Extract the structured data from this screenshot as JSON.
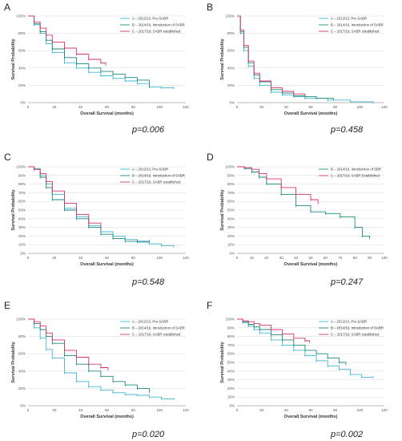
{
  "figure": {
    "panels": [
      {
        "letter": "A",
        "pvalue": "p=0.006"
      },
      {
        "letter": "B",
        "pvalue": "p=0.458"
      },
      {
        "letter": "C",
        "pvalue": "p=0.548"
      },
      {
        "letter": "D",
        "pvalue": "p=0.247"
      },
      {
        "letter": "E",
        "pvalue": "p=0.020"
      },
      {
        "letter": "F",
        "pvalue": "p=0.002"
      }
    ]
  },
  "chart_data": [
    {
      "panel": "A",
      "type": "line",
      "title": "",
      "xlabel": "Overall Survival (months)",
      "ylabel": "Survival Probability",
      "xlim": [
        0,
        130
      ],
      "ylim": [
        0,
        100
      ],
      "xticks": [
        "0",
        "20",
        "40",
        "60",
        "80",
        "100",
        "120"
      ],
      "yticks": [
        "0%",
        "20%",
        "40%",
        "60%",
        "80%",
        "100%"
      ],
      "legend_position": "top-right",
      "grid": true,
      "series": [
        {
          "name": "A – 2012/13, Pre-SABR",
          "color": "#45b8d4",
          "x": [
            0,
            5,
            10,
            15,
            20,
            30,
            40,
            50,
            60,
            70,
            80,
            90,
            100,
            110,
            120
          ],
          "y": [
            100,
            90,
            80,
            68,
            58,
            46,
            40,
            35,
            31,
            28,
            25,
            22,
            18,
            17,
            17
          ]
        },
        {
          "name": "B – 2014/16, Introduction of SABR",
          "color": "#1e8a7e",
          "x": [
            0,
            5,
            10,
            15,
            20,
            30,
            40,
            50,
            60,
            70,
            80,
            90,
            100
          ],
          "y": [
            100,
            91,
            82,
            72,
            62,
            52,
            45,
            40,
            36,
            33,
            29,
            26,
            19
          ]
        },
        {
          "name": "C – 2017/19, SABR established",
          "color": "#d6336c",
          "x": [
            0,
            5,
            10,
            15,
            20,
            30,
            40,
            50,
            60,
            64
          ],
          "y": [
            100,
            93,
            86,
            78,
            70,
            63,
            56,
            50,
            46,
            44
          ]
        }
      ]
    },
    {
      "panel": "B",
      "type": "line",
      "title": "",
      "xlabel": "Overall Survival (months)",
      "ylabel": "Survival Probability",
      "xlim": [
        0,
        130
      ],
      "ylim": [
        0,
        100
      ],
      "xticks": [
        "0",
        "20",
        "40",
        "60",
        "80",
        "100",
        "120"
      ],
      "yticks": [
        "0%",
        "20%",
        "40%",
        "60%",
        "80%",
        "100%"
      ],
      "legend_position": "top-right",
      "grid": true,
      "series": [
        {
          "name": "A – 2012/13, Pre-SABR",
          "color": "#45b8d4",
          "x": [
            0,
            3,
            6,
            10,
            15,
            20,
            30,
            40,
            50,
            60,
            80,
            100,
            120
          ],
          "y": [
            100,
            80,
            60,
            42,
            28,
            20,
            12,
            9,
            7,
            5,
            3,
            1,
            0
          ]
        },
        {
          "name": "B – 2014/16, Introduction of SABR",
          "color": "#1e8a7e",
          "x": [
            0,
            3,
            6,
            10,
            15,
            20,
            30,
            40,
            50,
            60,
            70,
            85
          ],
          "y": [
            100,
            82,
            64,
            46,
            32,
            24,
            15,
            11,
            8,
            7,
            5,
            4
          ]
        },
        {
          "name": "C – 2017/19, SABR established",
          "color": "#d6336c",
          "x": [
            0,
            3,
            6,
            10,
            15,
            20,
            30,
            40,
            50,
            60
          ],
          "y": [
            100,
            84,
            66,
            48,
            34,
            25,
            17,
            13,
            10,
            8
          ]
        }
      ]
    },
    {
      "panel": "C",
      "type": "line",
      "title": "",
      "xlabel": "Overall Survival (months)",
      "ylabel": "Survival Probability",
      "xlim": [
        0,
        130
      ],
      "ylim": [
        0,
        100
      ],
      "xticks": [
        "0",
        "20",
        "40",
        "60",
        "80",
        "100",
        "120"
      ],
      "yticks": [
        "0%",
        "10%",
        "20%",
        "30%",
        "40%",
        "50%",
        "60%",
        "70%",
        "80%",
        "90%",
        "100%"
      ],
      "legend_position": "top-right",
      "grid": true,
      "series": [
        {
          "name": "A – 2012/13, Pre-SABR",
          "color": "#45b8d4",
          "x": [
            0,
            5,
            10,
            15,
            20,
            30,
            40,
            50,
            60,
            70,
            80,
            90,
            100,
            110,
            120
          ],
          "y": [
            100,
            98,
            90,
            80,
            68,
            52,
            42,
            32,
            25,
            20,
            16,
            13,
            11,
            9,
            8
          ]
        },
        {
          "name": "B – 2014/16, Introduction of SABR",
          "color": "#1e8a7e",
          "x": [
            0,
            5,
            10,
            15,
            20,
            30,
            40,
            50,
            60,
            70,
            80,
            90,
            100
          ],
          "y": [
            100,
            97,
            88,
            76,
            62,
            50,
            40,
            30,
            22,
            17,
            14,
            14,
            14
          ]
        },
        {
          "name": "C – 2017/19, SABR established",
          "color": "#d6336c",
          "x": [
            0,
            5,
            10,
            15,
            20,
            30,
            40,
            50,
            60
          ],
          "y": [
            100,
            97,
            92,
            83,
            72,
            58,
            45,
            35,
            28
          ]
        }
      ]
    },
    {
      "panel": "D",
      "type": "line",
      "title": "",
      "xlabel": "Overall Survival (months)",
      "ylabel": "Survival Probability",
      "xlim": [
        0,
        100
      ],
      "ylim": [
        0,
        100
      ],
      "xticks": [
        "0",
        "10",
        "20",
        "30",
        "40",
        "50",
        "60",
        "70",
        "80",
        "90",
        "100"
      ],
      "yticks": [
        "0%",
        "10%",
        "20%",
        "30%",
        "40%",
        "50%",
        "60%",
        "70%",
        "80%",
        "90%",
        "100%"
      ],
      "legend_position": "top-right",
      "grid": true,
      "series": [
        {
          "name": "B – 2014/16, Introduction of SBR",
          "color": "#1e8a7e",
          "x": [
            0,
            5,
            10,
            15,
            20,
            30,
            40,
            50,
            60,
            70,
            80,
            85,
            90
          ],
          "y": [
            100,
            98,
            94,
            88,
            80,
            68,
            55,
            48,
            46,
            42,
            30,
            20,
            18
          ]
        },
        {
          "name": "C – 2017/19, SABR Established",
          "color": "#d6336c",
          "x": [
            0,
            5,
            10,
            15,
            20,
            30,
            40,
            50,
            55
          ],
          "y": [
            100,
            99,
            97,
            92,
            86,
            76,
            68,
            62,
            58
          ]
        }
      ]
    },
    {
      "panel": "E",
      "type": "line",
      "title": "",
      "xlabel": "Overall Survival (months)",
      "ylabel": "Survival Probability",
      "xlim": [
        0,
        130
      ],
      "ylim": [
        0,
        100
      ],
      "xticks": [
        "0",
        "20",
        "40",
        "60",
        "80",
        "100",
        "120"
      ],
      "yticks": [
        "0%",
        "20%",
        "40%",
        "60%",
        "80%",
        "100%"
      ],
      "legend_position": "top-right",
      "grid": true,
      "series": [
        {
          "name": "A – 2012/13, Pre-SABR",
          "color": "#45b8d4",
          "x": [
            0,
            5,
            10,
            15,
            20,
            30,
            40,
            50,
            60,
            70,
            80,
            90,
            100,
            110,
            120
          ],
          "y": [
            100,
            90,
            78,
            65,
            55,
            38,
            28,
            22,
            18,
            15,
            13,
            12,
            10,
            8,
            8
          ]
        },
        {
          "name": "B – 2014/16, Introduction of SABR",
          "color": "#1e8a7e",
          "x": [
            0,
            5,
            10,
            15,
            20,
            30,
            40,
            50,
            60,
            70,
            80,
            90,
            100
          ],
          "y": [
            100,
            95,
            88,
            80,
            72,
            58,
            48,
            40,
            34,
            28,
            24,
            20,
            16
          ]
        },
        {
          "name": "C – 2017/19, SABR established",
          "color": "#d6336c",
          "x": [
            0,
            5,
            10,
            15,
            20,
            30,
            40,
            50,
            60,
            66
          ],
          "y": [
            100,
            97,
            92,
            84,
            76,
            64,
            56,
            48,
            44,
            42
          ]
        }
      ]
    },
    {
      "panel": "F",
      "type": "line",
      "title": "",
      "xlabel": "Overall Survival (months)",
      "ylabel": "Survival Probability",
      "xlim": [
        0,
        130
      ],
      "ylim": [
        0,
        100
      ],
      "xticks": [
        "0",
        "20",
        "40",
        "60",
        "80",
        "100",
        "120"
      ],
      "yticks": [
        "0%",
        "10%",
        "20%",
        "30%",
        "40%",
        "50%",
        "60%",
        "70%",
        "80%",
        "90%",
        "100%"
      ],
      "legend_position": "top-right",
      "grid": true,
      "series": [
        {
          "name": "A – 2012/13, Pre-SABR",
          "color": "#45b8d4",
          "x": [
            0,
            5,
            10,
            15,
            20,
            30,
            40,
            50,
            60,
            70,
            80,
            90,
            100,
            110,
            120
          ],
          "y": [
            100,
            96,
            92,
            88,
            84,
            76,
            70,
            64,
            58,
            52,
            46,
            42,
            36,
            33,
            33
          ]
        },
        {
          "name": "B – 2014/16, Introduction of SABR",
          "color": "#1e8a7e",
          "x": [
            0,
            5,
            10,
            15,
            20,
            30,
            40,
            50,
            60,
            70,
            80,
            90,
            96
          ],
          "y": [
            100,
            97,
            94,
            91,
            88,
            82,
            76,
            70,
            64,
            60,
            55,
            50,
            48
          ]
        },
        {
          "name": "C – 2017/19, SABR established",
          "color": "#d6336c",
          "x": [
            0,
            5,
            10,
            15,
            20,
            30,
            40,
            50,
            60,
            64
          ],
          "y": [
            100,
            98,
            97,
            95,
            93,
            88,
            83,
            78,
            75,
            74
          ]
        }
      ]
    }
  ]
}
